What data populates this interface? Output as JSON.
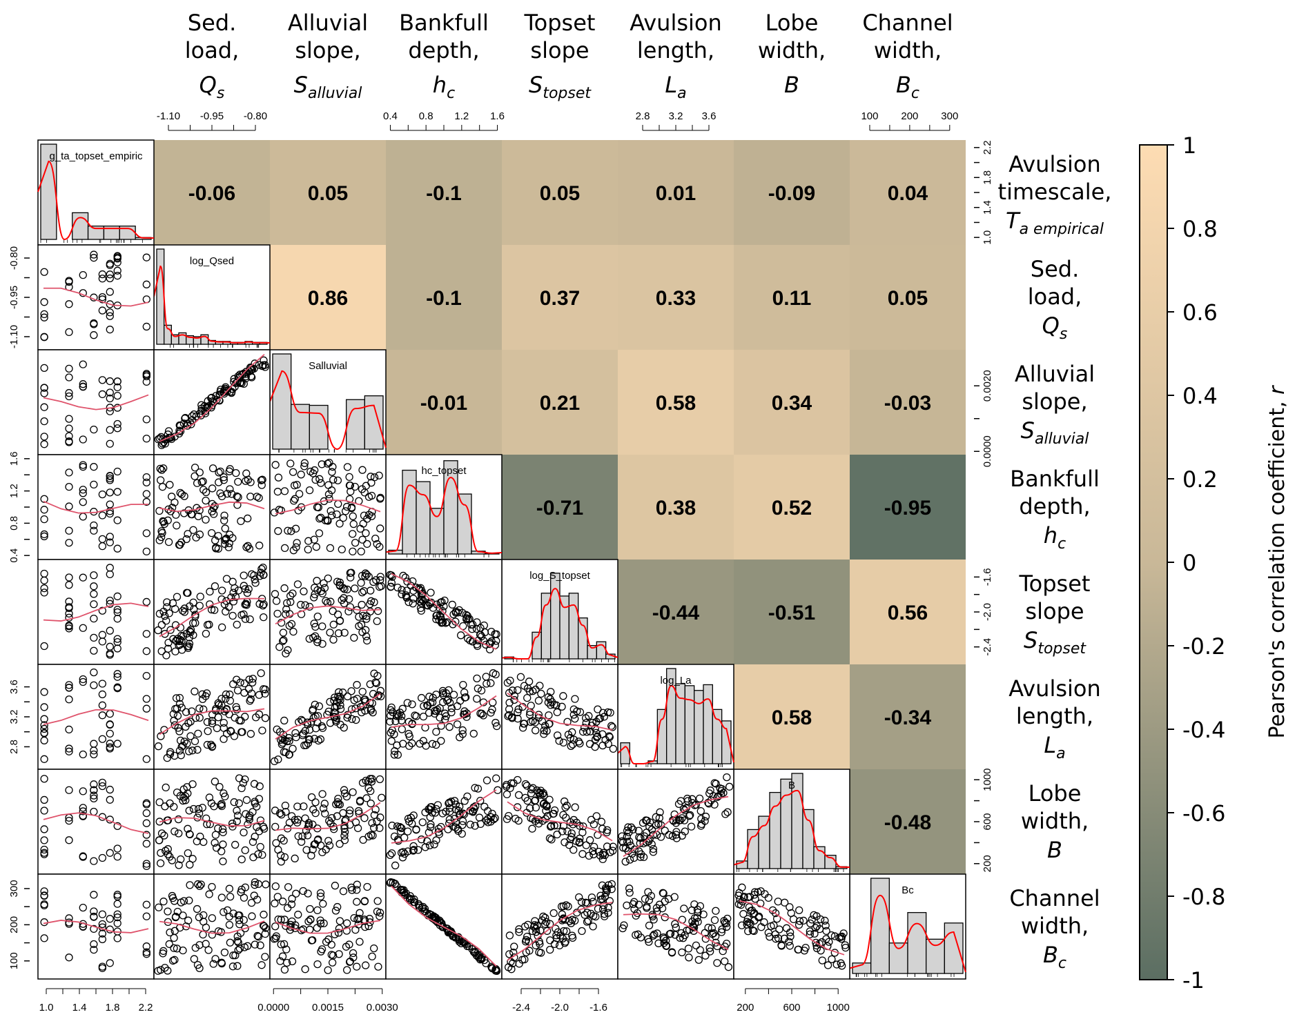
{
  "chart_data": {
    "type": "heatmap",
    "title": "",
    "description": "Pairs plot / correlation matrix: lower triangle scatter plots with red smoothing lines, diagonal histograms with red density curves, upper triangle Pearson correlation coefficients colored by value",
    "variables": [
      {
        "key": "Ta",
        "header": [
          "Avulsion",
          "timescale,"
        ],
        "symbol": "T",
        "subscript": "a empirical",
        "diag_label": "g_ta_topset_empiric"
      },
      {
        "key": "Qs",
        "header": [
          "Sed.",
          "load,"
        ],
        "symbol": "Q",
        "subscript": "s",
        "diag_label": "log_Qsed"
      },
      {
        "key": "Salluvial",
        "header": [
          "Alluvial",
          "slope,"
        ],
        "symbol": "S",
        "subscript": "alluvial",
        "diag_label": "Salluvial"
      },
      {
        "key": "hc",
        "header": [
          "Bankfull",
          "depth,"
        ],
        "symbol": "h",
        "subscript": "c",
        "diag_label": "hc_topset"
      },
      {
        "key": "Stopset",
        "header": [
          "Topset",
          "slope"
        ],
        "symbol": "S",
        "subscript": "topset",
        "diag_label": "log_S_topset"
      },
      {
        "key": "La",
        "header": [
          "Avulsion",
          "length,"
        ],
        "symbol": "L",
        "subscript": "a",
        "diag_label": "log_La"
      },
      {
        "key": "B",
        "header": [
          "Lobe",
          "width,"
        ],
        "symbol": "B",
        "subscript": "",
        "diag_label": "B"
      },
      {
        "key": "Bc",
        "header": [
          "Channel",
          "width,"
        ],
        "symbol": "B",
        "subscript": "c",
        "diag_label": "Bc"
      }
    ],
    "correlations": [
      {
        "row": 0,
        "col": 1,
        "r": -0.06
      },
      {
        "row": 0,
        "col": 2,
        "r": 0.05
      },
      {
        "row": 0,
        "col": 3,
        "r": -0.1
      },
      {
        "row": 0,
        "col": 4,
        "r": 0.05
      },
      {
        "row": 0,
        "col": 5,
        "r": 0.01
      },
      {
        "row": 0,
        "col": 6,
        "r": -0.09
      },
      {
        "row": 0,
        "col": 7,
        "r": 0.04
      },
      {
        "row": 1,
        "col": 2,
        "r": 0.86
      },
      {
        "row": 1,
        "col": 3,
        "r": -0.1
      },
      {
        "row": 1,
        "col": 4,
        "r": 0.37
      },
      {
        "row": 1,
        "col": 5,
        "r": 0.33
      },
      {
        "row": 1,
        "col": 6,
        "r": 0.11
      },
      {
        "row": 1,
        "col": 7,
        "r": 0.05
      },
      {
        "row": 2,
        "col": 3,
        "r": -0.01
      },
      {
        "row": 2,
        "col": 4,
        "r": 0.21
      },
      {
        "row": 2,
        "col": 5,
        "r": 0.58
      },
      {
        "row": 2,
        "col": 6,
        "r": 0.34
      },
      {
        "row": 2,
        "col": 7,
        "r": -0.03
      },
      {
        "row": 3,
        "col": 4,
        "r": -0.71
      },
      {
        "row": 3,
        "col": 5,
        "r": 0.38
      },
      {
        "row": 3,
        "col": 6,
        "r": 0.52
      },
      {
        "row": 3,
        "col": 7,
        "r": -0.95
      },
      {
        "row": 4,
        "col": 5,
        "r": -0.44
      },
      {
        "row": 4,
        "col": 6,
        "r": -0.51
      },
      {
        "row": 4,
        "col": 7,
        "r": 0.56
      },
      {
        "row": 5,
        "col": 6,
        "r": 0.58
      },
      {
        "row": 5,
        "col": 7,
        "r": -0.34
      },
      {
        "row": 6,
        "col": 7,
        "r": -0.48
      }
    ],
    "axes": {
      "top": [
        {
          "col": 1,
          "range": [
            -1.15,
            -0.75
          ],
          "ticks": [
            "-1.10",
            "-0.95",
            "-0.80"
          ],
          "tick_values": [
            -1.1,
            -0.95,
            -0.8
          ],
          "minor_count": 7
        },
        {
          "col": 3,
          "range": [
            0.35,
            1.65
          ],
          "ticks": [
            "0.4",
            "0.8",
            "1.2",
            "1.6"
          ],
          "tick_values": [
            0.4,
            0.8,
            1.2,
            1.6
          ],
          "minor_count": 7
        },
        {
          "col": 5,
          "range": [
            2.5,
            3.9
          ],
          "ticks": [
            "2.8",
            "3.2",
            "3.6"
          ],
          "tick_values": [
            2.8,
            3.2,
            3.6
          ],
          "minor_count": 6
        },
        {
          "col": 7,
          "range": [
            50,
            340
          ],
          "ticks": [
            "100",
            "200",
            "300"
          ],
          "tick_values": [
            100,
            200,
            300
          ],
          "minor_count": 5
        }
      ],
      "bottom": [
        {
          "col": 0,
          "range": [
            0.9,
            2.3
          ],
          "ticks": [
            "1.0",
            "1.4",
            "1.8",
            "2.2"
          ],
          "tick_values": [
            1.0,
            1.4,
            1.8,
            2.2
          ],
          "minor_count": 7
        },
        {
          "col": 2,
          "range": [
            -0.0001,
            0.0031
          ],
          "ticks": [
            "0.0000",
            "0.0015",
            "0.0030"
          ],
          "tick_values": [
            0.0,
            0.0015,
            0.003
          ],
          "minor_count": 7
        },
        {
          "col": 4,
          "range": [
            -2.6,
            -1.4
          ],
          "ticks": [
            "-2.4",
            "-2.0",
            "-1.6"
          ],
          "tick_values": [
            -2.4,
            -2.0,
            -1.6
          ],
          "minor_count": 6
        },
        {
          "col": 6,
          "range": [
            100,
            1100
          ],
          "ticks": [
            "200",
            "600",
            "1000"
          ],
          "tick_values": [
            200,
            600,
            1000
          ],
          "minor_count": 5
        }
      ],
      "left": [
        {
          "row": 1,
          "range": [
            -1.15,
            -0.75
          ],
          "ticks": [
            "-1.10",
            "-0.95",
            "-0.80"
          ],
          "tick_values": [
            -1.1,
            -0.95,
            -0.8
          ],
          "minor_count": 7
        },
        {
          "row": 3,
          "range": [
            0.35,
            1.65
          ],
          "ticks": [
            "0.4",
            "0.8",
            "1.2",
            "1.6"
          ],
          "tick_values": [
            0.4,
            0.8,
            1.2,
            1.6
          ],
          "minor_count": 7
        },
        {
          "row": 5,
          "range": [
            2.5,
            3.9
          ],
          "ticks": [
            "2.8",
            "3.2",
            "3.6"
          ],
          "tick_values": [
            2.8,
            3.2,
            3.6
          ],
          "minor_count": 6
        },
        {
          "row": 7,
          "range": [
            50,
            340
          ],
          "ticks": [
            "100",
            "200",
            "300"
          ],
          "tick_values": [
            100,
            200,
            300
          ],
          "minor_count": 5
        }
      ],
      "right": [
        {
          "row": 0,
          "range": [
            0.9,
            2.3
          ],
          "ticks": [
            "1.0",
            "1.4",
            "1.8",
            "2.2"
          ],
          "tick_values": [
            1.0,
            1.4,
            1.8,
            2.2
          ],
          "minor_count": 7
        },
        {
          "row": 2,
          "range": [
            -0.0001,
            0.0031
          ],
          "ticks": [
            "0.0000",
            "0.0020"
          ],
          "tick_values": [
            0.0,
            0.002
          ],
          "minor_count": 7
        },
        {
          "row": 4,
          "range": [
            -2.6,
            -1.4
          ],
          "ticks": [
            "-2.4",
            "-2.0",
            "-1.6"
          ],
          "tick_values": [
            -2.4,
            -2.0,
            -1.6
          ],
          "minor_count": 6
        },
        {
          "row": 6,
          "range": [
            100,
            1100
          ],
          "ticks": [
            "200",
            "600",
            "1000"
          ],
          "tick_values": [
            200,
            600,
            1000
          ],
          "minor_count": 5
        }
      ]
    },
    "histograms": [
      {
        "var": 0,
        "bins": [
          1.0,
          0.0,
          0.28,
          0.14,
          0.14,
          0.14,
          0.02
        ]
      },
      {
        "var": 1,
        "bins": [
          1.0,
          0.2,
          0.1,
          0.12,
          0.09,
          0.08,
          0.1,
          0.04,
          0.03,
          0.03,
          0.02,
          0.02,
          0.03,
          0.02,
          0.02
        ]
      },
      {
        "var": 2,
        "bins": [
          1.0,
          0.47,
          0.46,
          0.0,
          0.52,
          0.56
        ]
      },
      {
        "var": 3,
        "bins": [
          0.04,
          0.88,
          0.76,
          0.48,
          0.98,
          0.63,
          0.03,
          0.01
        ]
      },
      {
        "var": 4,
        "bins": [
          0.02,
          0.0,
          0.0,
          0.28,
          0.69,
          0.9,
          0.66,
          0.69,
          0.43,
          0.14,
          0.18,
          0.05
        ]
      },
      {
        "var": 5,
        "bins": [
          0.22,
          0.0,
          0.0,
          0.03,
          0.57,
          1.0,
          0.84,
          0.82,
          0.77,
          0.83,
          0.57,
          0.45
        ]
      },
      {
        "var": 6,
        "bins": [
          0.08,
          0.41,
          0.55,
          0.8,
          0.94,
          1.0,
          0.62,
          0.23,
          0.14,
          0.02
        ]
      },
      {
        "var": 7,
        "bins": [
          0.11,
          1.0,
          0.32,
          0.64,
          0.36,
          0.53
        ]
      }
    ],
    "colorbar": {
      "title": "Pearson's correlation coefficient, ",
      "title_italic": "r",
      "range": [
        -1,
        1
      ],
      "ticks": [
        "1",
        "0.8",
        "0.6",
        "0.4",
        "0.2",
        "0",
        "-0.2",
        "-0.4",
        "-0.6",
        "-0.8",
        "-1"
      ],
      "tick_values": [
        1,
        0.8,
        0.6,
        0.4,
        0.2,
        0,
        -0.2,
        -0.4,
        -0.6,
        -0.8,
        -1
      ],
      "color_low": "#5b6e62",
      "color_mid": "#c9b898",
      "color_high": "#fddcb3"
    },
    "colors": {
      "hist_fill": "#d3d3d3",
      "density_line": "#ff0000",
      "smooth_line": "#df536b",
      "points": "#000000"
    }
  }
}
